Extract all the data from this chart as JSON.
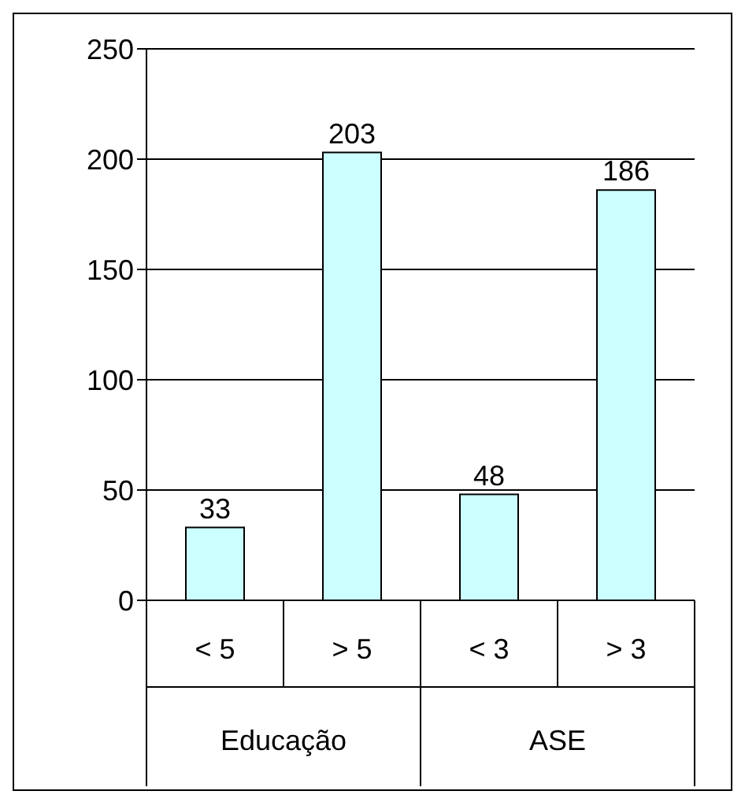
{
  "chart_data": {
    "type": "bar",
    "categories": [
      "< 5",
      "> 5",
      "< 3",
      "> 3"
    ],
    "values": [
      33,
      203,
      48,
      186
    ],
    "color": "#ccffff",
    "ylim": [
      0,
      250
    ],
    "yticks": [
      0,
      50,
      100,
      150,
      200,
      250
    ],
    "grid": "y",
    "data_labels": true,
    "annotations": [
      "Educação",
      "ASE"
    ]
  }
}
